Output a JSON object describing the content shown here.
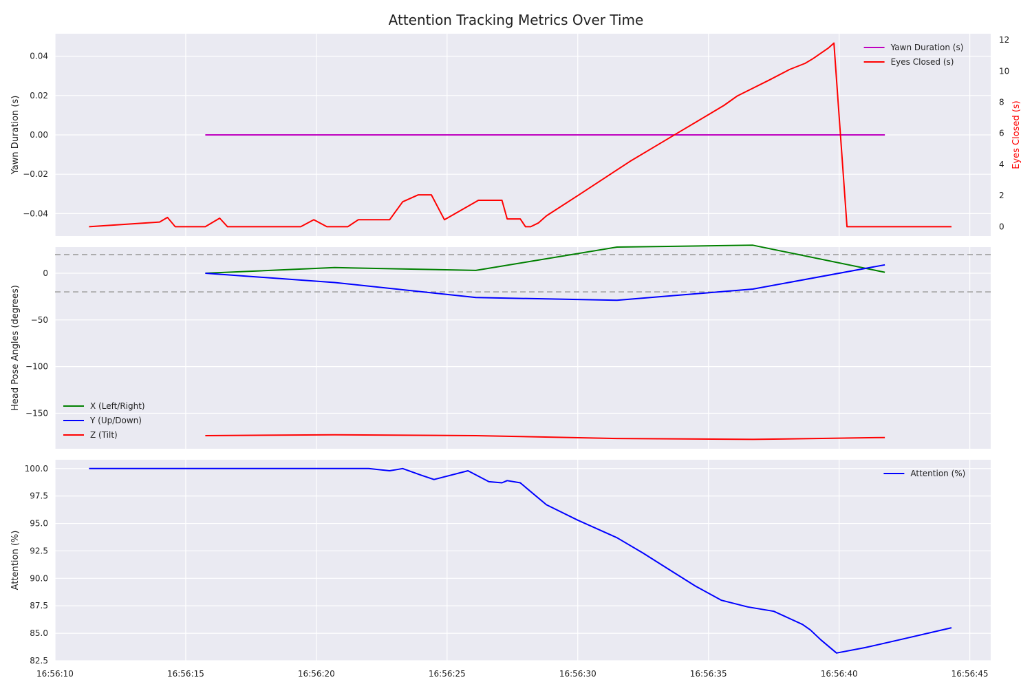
{
  "title": "Attention Tracking Metrics Over Time",
  "colors": {
    "yawn": "#bf00bf",
    "eyes": "#ff0000",
    "x": "#008000",
    "y": "#0000ff",
    "z": "#ff0000",
    "attention": "#0000ff",
    "threshold": "#a8a8a8",
    "right_axis_label": "#ff0000"
  },
  "chart_data": [
    {
      "type": "line",
      "panel": "top",
      "ylabel": "Yawn Duration (s)",
      "ylabel_right": "Eyes Closed (s)",
      "ylim": [
        -0.0514,
        0.0514
      ],
      "ylim_right": [
        -0.6,
        12.4
      ],
      "yticks": [
        -0.04,
        -0.02,
        0.0,
        0.02,
        0.04
      ],
      "yticks_right": [
        0,
        2,
        4,
        6,
        8,
        10,
        12
      ],
      "grid": true,
      "legend": "top-right",
      "series": [
        {
          "name": "Yawn Duration (s)",
          "axis": "left",
          "color": "#bf00bf",
          "x": [
            "16:56:15.75",
            "16:56:41.75"
          ],
          "y": [
            0.0,
            0.0
          ]
        },
        {
          "name": "Eyes Closed (s)",
          "axis": "right",
          "color": "#ff0000",
          "x": [
            "16:56:11.3",
            "16:56:14.0",
            "16:56:14.3",
            "16:56:14.6",
            "16:56:15.75",
            "16:56:16.3",
            "16:56:16.6",
            "16:56:19.4",
            "16:56:19.9",
            "16:56:20.4",
            "16:56:21.2",
            "16:56:21.6",
            "16:56:22.8",
            "16:56:23.3",
            "16:56:23.9",
            "16:56:24.4",
            "16:56:24.9",
            "16:56:26.2",
            "16:56:27.1",
            "16:56:27.3",
            "16:56:27.8",
            "16:56:28.0",
            "16:56:28.2",
            "16:56:28.5",
            "16:56:28.8",
            "16:56:30.0",
            "16:56:31.0",
            "16:56:32.0",
            "16:56:33.0",
            "16:56:34.0",
            "16:56:35.0",
            "16:56:35.6",
            "16:56:36.1",
            "16:56:37.3",
            "16:56:38.1",
            "16:56:38.7",
            "16:56:39.0",
            "16:56:39.6",
            "16:56:39.8",
            "16:56:40.3",
            "16:56:44.3"
          ],
          "y": [
            0.0,
            0.3,
            0.6,
            0.0,
            0.0,
            0.55,
            0.0,
            0.0,
            0.45,
            0.0,
            0.0,
            0.45,
            0.45,
            1.6,
            2.05,
            2.05,
            0.45,
            1.7,
            1.7,
            0.5,
            0.5,
            0.0,
            0.0,
            0.25,
            0.7,
            2.0,
            3.1,
            4.2,
            5.2,
            6.2,
            7.2,
            7.8,
            8.4,
            9.4,
            10.1,
            10.5,
            10.8,
            11.5,
            11.8,
            0.0,
            0.0
          ]
        }
      ]
    },
    {
      "type": "line",
      "panel": "middle",
      "ylabel": "Head Pose Angles (degrees)",
      "ylim": [
        -188,
        28
      ],
      "yticks": [
        -150,
        -100,
        -50,
        0
      ],
      "grid": true,
      "legend": "bottom-left",
      "thresholds": [
        20,
        -20
      ],
      "series": [
        {
          "name": "X (Left/Right)",
          "color": "#008000",
          "x": [
            "16:56:15.75",
            "16:56:20.7",
            "16:56:26.1",
            "16:56:31.5",
            "16:56:36.7",
            "16:56:41.75"
          ],
          "y": [
            0,
            6,
            3,
            28,
            30,
            1
          ]
        },
        {
          "name": "Y (Up/Down)",
          "color": "#0000ff",
          "x": [
            "16:56:15.75",
            "16:56:20.7",
            "16:56:26.1",
            "16:56:31.5",
            "16:56:36.7",
            "16:56:41.75"
          ],
          "y": [
            0,
            -10,
            -26,
            -29,
            -17,
            9
          ]
        },
        {
          "name": "Z (Tilt)",
          "color": "#ff0000",
          "x": [
            "16:56:15.75",
            "16:56:20.7",
            "16:56:26.1",
            "16:56:31.5",
            "16:56:36.7",
            "16:56:41.75"
          ],
          "y": [
            -174,
            -173,
            -174,
            -177,
            -178,
            -176
          ]
        }
      ]
    },
    {
      "type": "line",
      "panel": "bottom",
      "ylabel": "Attention (%)",
      "ylim": [
        82.5,
        100.8
      ],
      "yticks": [
        82.5,
        85.0,
        87.5,
        90.0,
        92.5,
        95.0,
        97.5,
        100.0
      ],
      "grid": true,
      "legend": "top-right",
      "series": [
        {
          "name": "Attention (%)",
          "color": "#0000ff",
          "x": [
            "16:56:11.3",
            "16:56:22.0",
            "16:56:22.8",
            "16:56:23.3",
            "16:56:24.0",
            "16:56:24.5",
            "16:56:25.8",
            "16:56:26.6",
            "16:56:27.1",
            "16:56:27.3",
            "16:56:27.8",
            "16:56:28.2",
            "16:56:28.8",
            "16:56:30.0",
            "16:56:31.5",
            "16:56:32.5",
            "16:56:33.5",
            "16:56:34.5",
            "16:56:35.5",
            "16:56:36.5",
            "16:56:37.5",
            "16:56:38.6",
            "16:56:38.9",
            "16:56:39.3",
            "16:56:39.9",
            "16:56:41.0",
            "16:56:42.3",
            "16:56:44.3"
          ],
          "y": [
            100.0,
            100.0,
            99.8,
            100.0,
            99.4,
            99.0,
            99.8,
            98.8,
            98.7,
            98.9,
            98.7,
            97.9,
            96.7,
            95.3,
            93.7,
            92.3,
            90.8,
            89.3,
            88.0,
            87.4,
            87.0,
            85.8,
            85.3,
            84.4,
            83.2,
            83.7,
            84.4,
            85.5
          ]
        }
      ]
    }
  ],
  "x_axis": {
    "range": [
      "16:56:10.0",
      "16:56:45.8"
    ],
    "ticks": [
      "16:56:10",
      "16:56:15",
      "16:56:20",
      "16:56:25",
      "16:56:30",
      "16:56:35",
      "16:56:40",
      "16:56:45"
    ]
  }
}
